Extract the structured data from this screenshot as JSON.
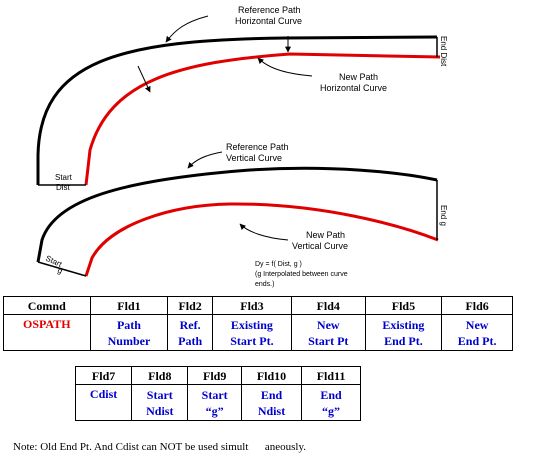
{
  "diagram": {
    "top_labels": {
      "ref_path_line1": "Reference Path",
      "ref_path_line2": "Horizontal Curve",
      "new_path_line1": "New Path",
      "new_path_line2": "Horizontal Curve",
      "end_dist": "End Dist",
      "start_dist_line1": "Start",
      "start_dist_line2": "Dist"
    },
    "bottom_labels": {
      "ref_path_line1": "Reference Path",
      "ref_path_line2": "Vertical Curve",
      "new_path_line1": "New Path",
      "new_path_line2": "Vertical Curve",
      "end_g": "End g",
      "start_g_line1": "Start",
      "start_g_line2": "g",
      "formula_line1": "Dy = f( Dist, g )",
      "formula_line2": "(g Interpolated between curve",
      "formula_line3": "ends.)"
    },
    "colors": {
      "reference": "#000000",
      "new_path": "#e00000"
    }
  },
  "table1": {
    "headers": [
      "Comnd",
      "Fld1",
      "Fld2",
      "Fld3",
      "Fld4",
      "Fld5",
      "Fld6"
    ],
    "values": [
      [
        "OSPATH"
      ],
      [
        "Path",
        "Number"
      ],
      [
        "Ref.",
        "Path"
      ],
      [
        "Existing",
        "Start Pt."
      ],
      [
        "New",
        "Start Pt"
      ],
      [
        "Existing",
        "End Pt."
      ],
      [
        "New",
        "End Pt."
      ]
    ]
  },
  "table2": {
    "headers": [
      "Fld7",
      "Fld8",
      "Fld9",
      "Fld10",
      "Fld11"
    ],
    "values": [
      [
        "Cdist"
      ],
      [
        "Start",
        "Ndist"
      ],
      [
        "Start",
        "“g”"
      ],
      [
        "End",
        "Ndist"
      ],
      [
        "End",
        "“g”"
      ]
    ]
  },
  "note": "Note: Old End Pt. And Cdist can NOT be used simult      aneously."
}
